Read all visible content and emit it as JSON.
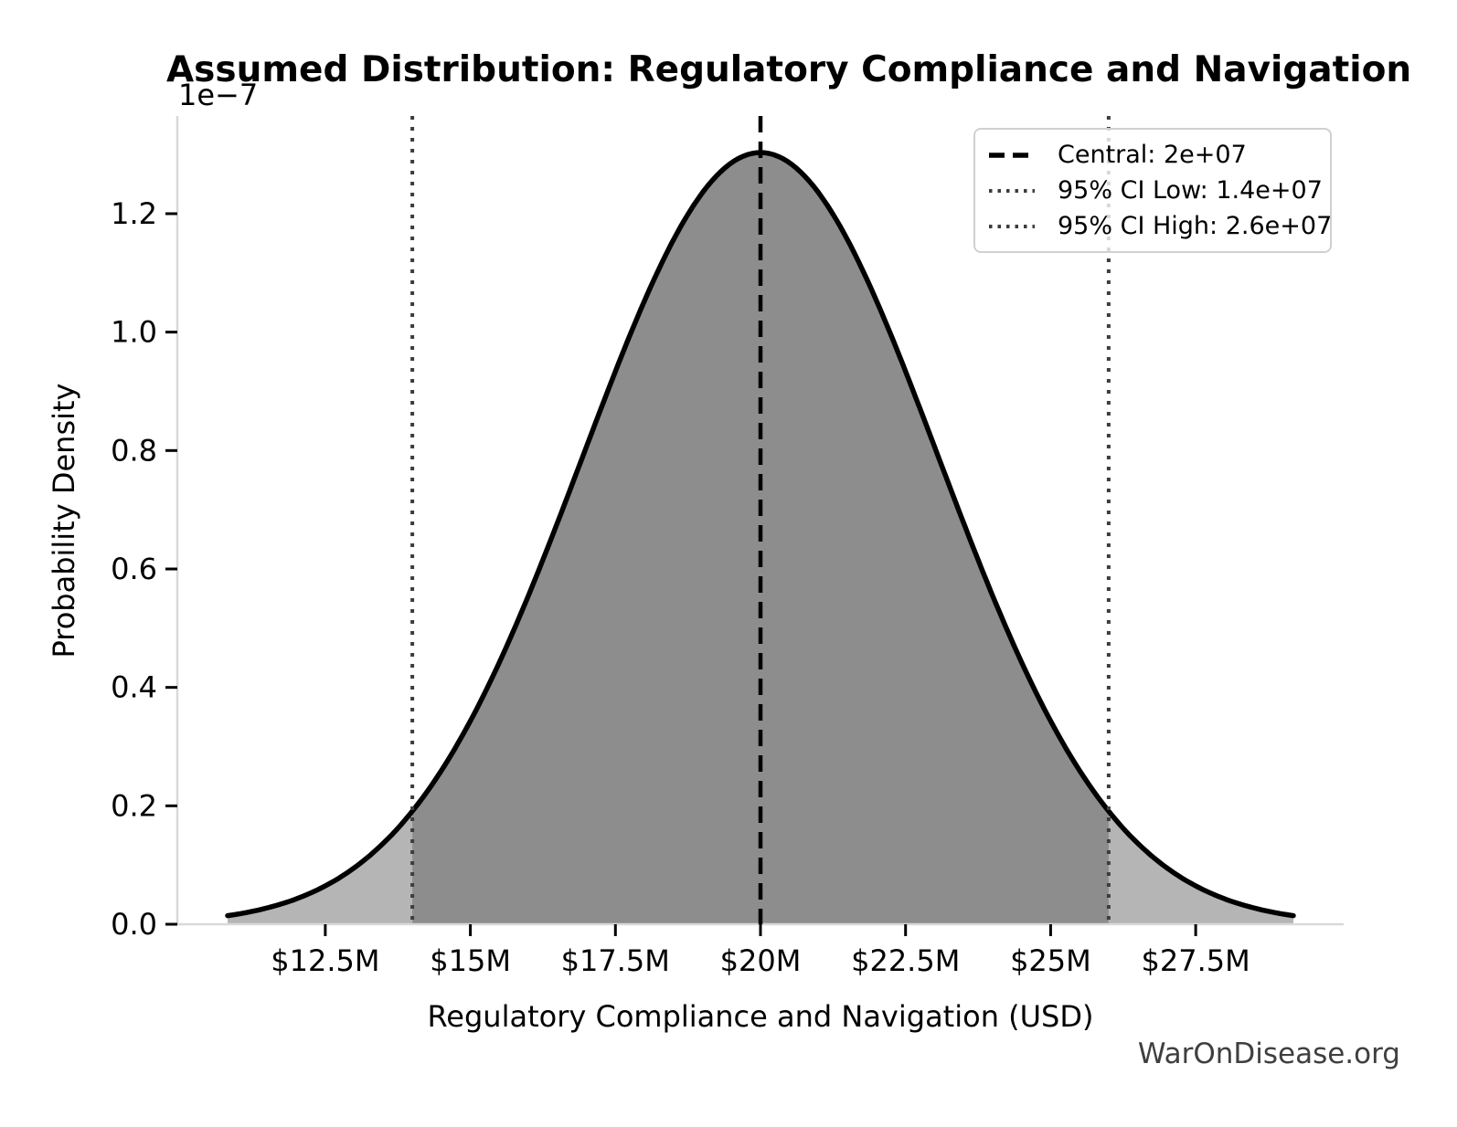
{
  "watermark": "WarOnDisease.org",
  "chart_data": {
    "type": "area",
    "title": "Assumed Distribution: Regulatory Compliance and Navigation",
    "xlabel": "Regulatory Compliance and Navigation (USD)",
    "ylabel": "Probability Density",
    "y_axis_offset_label": "1e−7",
    "grid": false,
    "legend_position": "upper right",
    "distribution": {
      "kind": "normal",
      "mean": 20000000,
      "sigma": 3061224,
      "central": 20000000,
      "ci_low": 14000000,
      "ci_high": 26000000,
      "ci_level": "95%",
      "curve_span_sigmas": 3,
      "peak_density": 1.3033e-07
    },
    "xlim": [
      9950000,
      30050000
    ],
    "ylim": [
      0,
      1.365e-07
    ],
    "x_ticks": [
      {
        "value": 12500000,
        "label": "$12.5M"
      },
      {
        "value": 15000000,
        "label": "$15M"
      },
      {
        "value": 17500000,
        "label": "$17.5M"
      },
      {
        "value": 20000000,
        "label": "$20M"
      },
      {
        "value": 22500000,
        "label": "$22.5M"
      },
      {
        "value": 25000000,
        "label": "$25M"
      },
      {
        "value": 27500000,
        "label": "$27.5M"
      }
    ],
    "y_ticks": [
      {
        "value": 0,
        "label": "0.0"
      },
      {
        "value": 2e-08,
        "label": "0.2"
      },
      {
        "value": 4e-08,
        "label": "0.4"
      },
      {
        "value": 6e-08,
        "label": "0.6"
      },
      {
        "value": 8e-08,
        "label": "0.8"
      },
      {
        "value": 1e-07,
        "label": "1.0"
      },
      {
        "value": 1.2e-07,
        "label": "1.2"
      }
    ],
    "legend": [
      {
        "label": "Central: 2e+07",
        "style": "dashed",
        "color": "#000000"
      },
      {
        "label": "95% CI Low: 1.4e+07",
        "style": "dotted",
        "color": "#3d3d3d"
      },
      {
        "label": "95% CI High: 2.6e+07",
        "style": "dotted",
        "color": "#3d3d3d"
      }
    ],
    "colors": {
      "curve": "#000000",
      "fill_outer": "#b5b5b5",
      "fill_inner": "#8d8d8d",
      "vline_central": "#000000",
      "vline_ci": "#3d3d3d",
      "spine": "#d9d9d9",
      "tick": "#000000",
      "text": "#000000",
      "watermark": "#3f3f3f"
    }
  }
}
